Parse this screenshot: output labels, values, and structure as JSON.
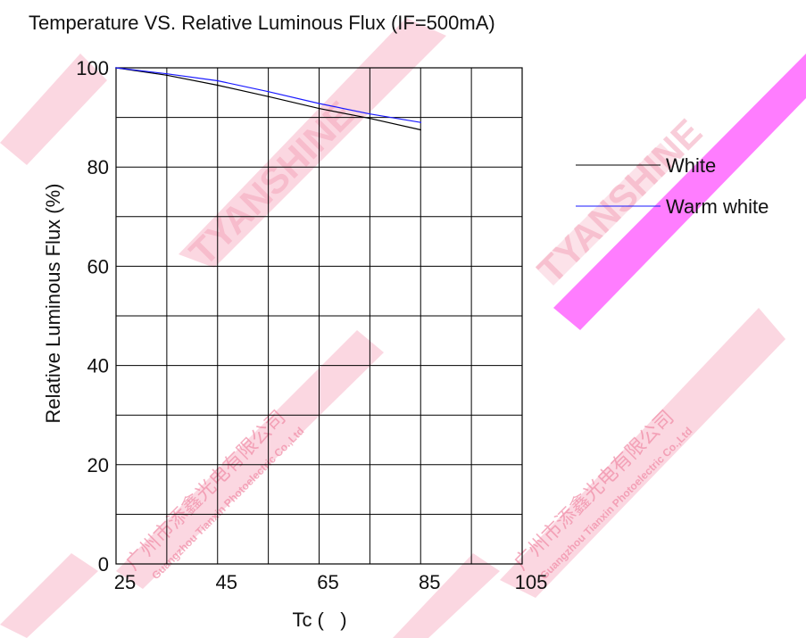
{
  "chart_data": {
    "type": "line",
    "title": "Temperature VS. Relative Luminous Flux (IF=500mA)",
    "xlabel": "Tc (   )",
    "ylabel": "Relative  Luminous  Flux (%)",
    "xlim": [
      25,
      105
    ],
    "ylim": [
      0,
      100
    ],
    "x_ticks": [
      25,
      45,
      65,
      85,
      105
    ],
    "y_ticks": [
      0,
      20,
      40,
      60,
      80,
      100
    ],
    "x_tick_labels": [
      "25",
      "45",
      "65",
      "85",
      "105"
    ],
    "y_tick_labels": [
      "0",
      "20",
      "40",
      "60",
      "80",
      "100"
    ],
    "x_grid_step": 10,
    "y_grid_step": 10,
    "grid": true,
    "legend_placement": "right",
    "series": [
      {
        "name": "White",
        "color": "#000000",
        "x": [
          25,
          35,
          45,
          55,
          65,
          75,
          85
        ],
        "y": [
          100,
          98.5,
          96.5,
          94.2,
          91.8,
          89.8,
          87.5
        ]
      },
      {
        "name": "Warm white",
        "color": "#1a1aff",
        "x": [
          25,
          35,
          45,
          55,
          65,
          75,
          85
        ],
        "y": [
          100,
          98.8,
          97.4,
          95.2,
          92.8,
          90.7,
          89
        ]
      }
    ]
  },
  "watermark": {
    "text_cn": "广州市添鑫光电有限公司",
    "text_en": "Guangzhou Tianxin Photoelectric Co.,Ltd",
    "logo_text": "TYANSHINE",
    "color_light": "#f9c6d4",
    "color_strong": "#ff66ff"
  }
}
